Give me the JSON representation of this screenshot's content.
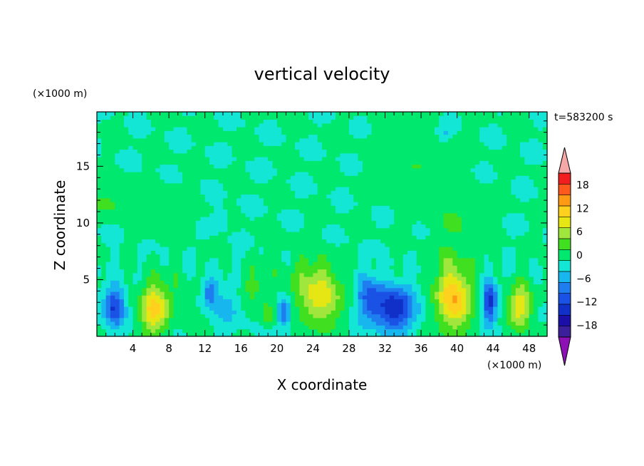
{
  "chart_data": {
    "type": "heatmap",
    "title": "vertical velocity",
    "time_label": "t=583200 s",
    "xlabel": "X coordinate",
    "ylabel": "Z coordinate",
    "x_unit": "(×1000 m)",
    "y_unit": "(×1000 m)",
    "xlim": [
      0,
      50
    ],
    "ylim": [
      0,
      19.8
    ],
    "x_ticks": [
      4,
      8,
      12,
      16,
      20,
      24,
      28,
      32,
      36,
      40,
      44,
      48
    ],
    "x_tick_labels": [
      "4",
      "8",
      "12",
      "16",
      "20",
      "24",
      "28",
      "32",
      "36",
      "40",
      "44",
      "48"
    ],
    "y_ticks": [
      5,
      10,
      15
    ],
    "y_tick_labels": [
      "5",
      "10",
      "15"
    ],
    "colorbar": {
      "levels": [
        -21,
        -18,
        -15,
        -12,
        -9,
        -6,
        -3,
        0,
        3,
        6,
        9,
        12,
        15,
        18,
        21
      ],
      "tick_values": [
        -18,
        -12,
        -6,
        0,
        6,
        12,
        18
      ],
      "tick_labels": [
        "−18",
        "−12",
        "−6",
        "0",
        "6",
        "12",
        "18"
      ],
      "colors": [
        "#3b1f9b",
        "#1b0fa8",
        "#1030c8",
        "#1a52e6",
        "#1e7ef0",
        "#18b6ee",
        "#14e6d6",
        "#00e86e",
        "#40e020",
        "#a0e63c",
        "#e6e614",
        "#ffd01e",
        "#ff9a14",
        "#ff5a1e",
        "#f01e1e"
      ],
      "under_color": "#8c10b4",
      "over_color": "#f4a8a8"
    },
    "field": {
      "background_value": 0.2,
      "features": [
        {
          "x": 2.0,
          "z": 2.6,
          "sx": 0.8,
          "sz": 1.3,
          "amp": -13
        },
        {
          "x": 6.3,
          "z": 2.5,
          "sx": 1.1,
          "sz": 1.6,
          "amp": 13
        },
        {
          "x": 12.5,
          "z": 3.9,
          "sx": 0.6,
          "sz": 0.9,
          "amp": -9
        },
        {
          "x": 14.5,
          "z": 2.8,
          "sx": 1.2,
          "sz": 1.4,
          "amp": -4
        },
        {
          "x": 9.5,
          "z": 3.5,
          "sx": 1.0,
          "sz": 1.2,
          "amp": 3
        },
        {
          "x": 17.0,
          "z": 4.3,
          "sx": 1.6,
          "sz": 1.0,
          "amp": 3
        },
        {
          "x": 19.0,
          "z": 2.0,
          "sx": 0.5,
          "sz": 0.7,
          "amp": 5
        },
        {
          "x": 20.8,
          "z": 2.1,
          "sx": 0.5,
          "sz": 0.9,
          "amp": -10
        },
        {
          "x": 24.8,
          "z": 3.5,
          "sx": 1.5,
          "sz": 1.8,
          "amp": 11
        },
        {
          "x": 33.0,
          "z": 2.5,
          "sx": 1.6,
          "sz": 1.4,
          "amp": -15
        },
        {
          "x": 30.2,
          "z": 3.4,
          "sx": 1.0,
          "sz": 1.5,
          "amp": -8
        },
        {
          "x": 39.6,
          "z": 3.4,
          "sx": 1.3,
          "sz": 2.0,
          "amp": 15
        },
        {
          "x": 43.6,
          "z": 3.1,
          "sx": 0.55,
          "sz": 1.4,
          "amp": -13
        },
        {
          "x": 47.0,
          "z": 2.7,
          "sx": 0.9,
          "sz": 1.3,
          "amp": 11
        },
        {
          "x": 22.5,
          "z": 5.5,
          "sx": 2.5,
          "sz": 1.8,
          "amp": 2
        },
        {
          "x": 40.0,
          "z": 9.5,
          "sx": 2.0,
          "sz": 2.5,
          "amp": 2.5
        },
        {
          "x": 35.0,
          "z": 16.0,
          "sx": 3.0,
          "sz": 2.5,
          "amp": 2
        },
        {
          "x": 8.0,
          "z": 11.0,
          "sx": 2.0,
          "sz": 1.5,
          "amp": 2
        },
        {
          "x": 1.5,
          "z": 11.8,
          "sx": 1.5,
          "sz": 0.8,
          "amp": 3.5
        },
        {
          "x": 38.5,
          "z": 18.0,
          "sx": 0.6,
          "sz": 0.5,
          "amp": -4
        },
        {
          "x": 13.8,
          "z": 10.5,
          "sx": 0.6,
          "sz": 0.6,
          "amp": -3
        }
      ]
    }
  }
}
